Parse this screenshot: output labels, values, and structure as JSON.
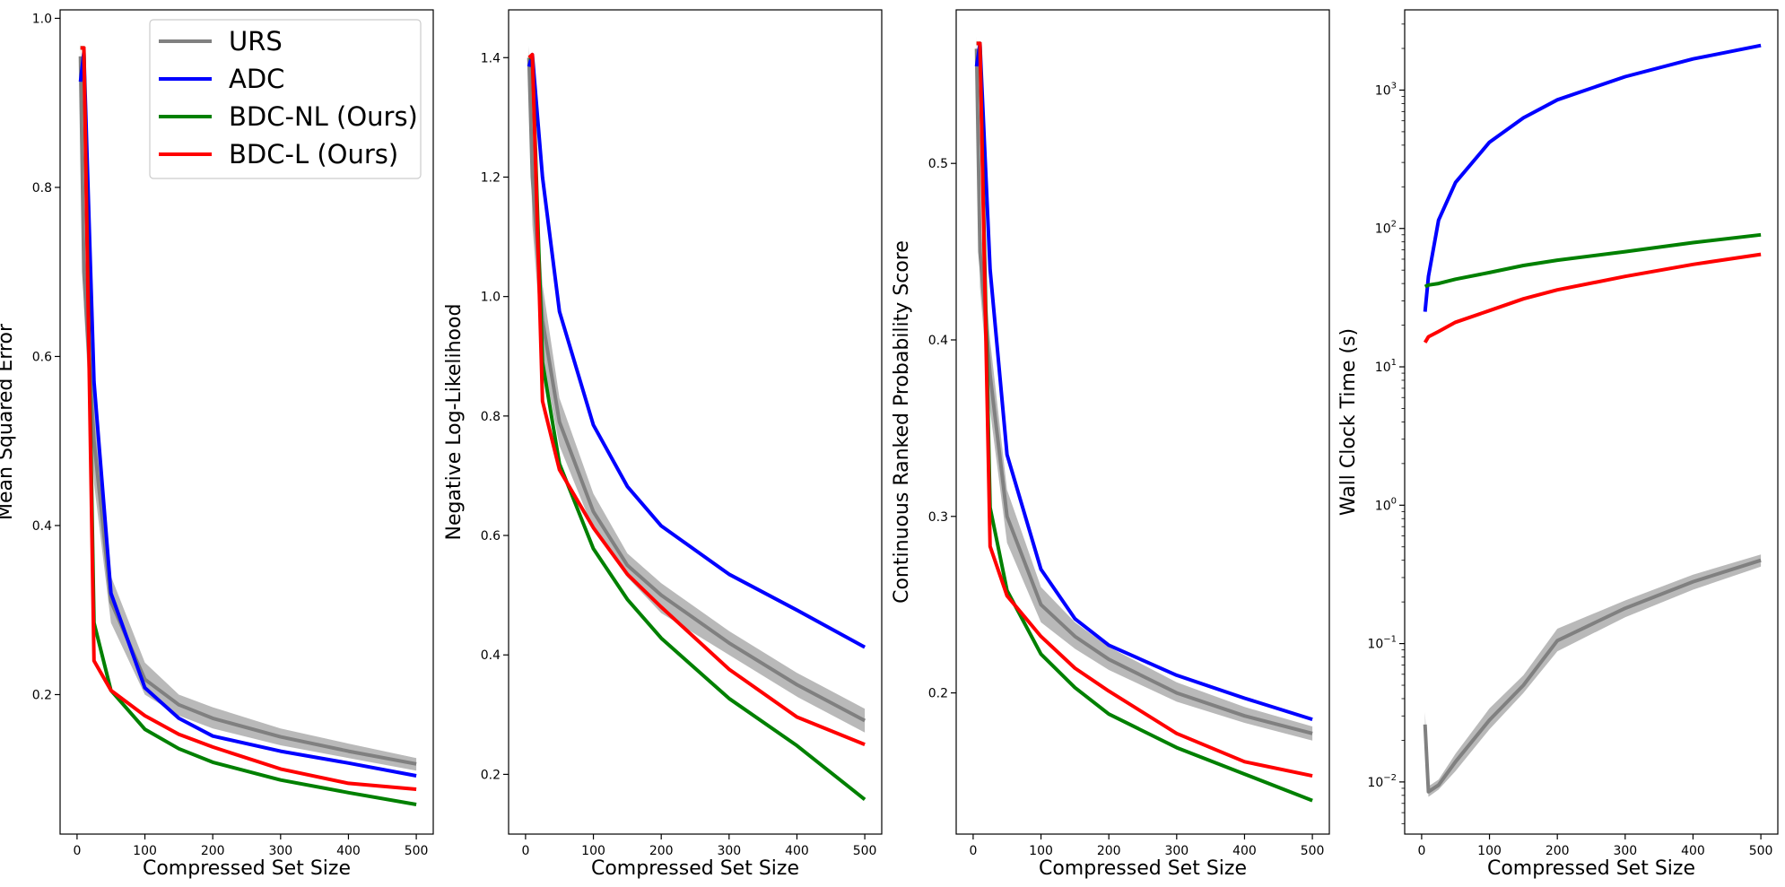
{
  "chart_data": [
    {
      "type": "line",
      "title": "",
      "xlabel": "Compressed Set Size",
      "ylabel": "Mean Squared Error",
      "xlim": [
        -25,
        525
      ],
      "ylim": [
        0.035,
        1.01
      ],
      "x_ticks": [
        0,
        100,
        200,
        300,
        400,
        500
      ],
      "y_ticks": [
        0.2,
        0.4,
        0.6,
        0.8,
        1.0
      ],
      "y_tick_labels": [
        "0.2",
        "0.4",
        "0.6",
        "0.8",
        "1.0"
      ],
      "legend": "top-right",
      "series": [
        {
          "name": "URS",
          "color": "#808080",
          "x": [
            5,
            10,
            25,
            50,
            100,
            150,
            200,
            300,
            400,
            500
          ],
          "y": [
            0.955,
            0.7,
            0.5,
            0.31,
            0.218,
            0.188,
            0.172,
            0.15,
            0.133,
            0.118
          ],
          "band_low": [
            0.93,
            0.66,
            0.45,
            0.285,
            0.2,
            0.175,
            0.16,
            0.14,
            0.125,
            0.11
          ],
          "band_high": [
            0.975,
            0.74,
            0.55,
            0.34,
            0.238,
            0.2,
            0.185,
            0.16,
            0.142,
            0.125
          ]
        },
        {
          "name": "ADC",
          "color": "#0000ff",
          "x": [
            5,
            10,
            25,
            50,
            100,
            150,
            200,
            300,
            400,
            500
          ],
          "y": [
            0.925,
            0.96,
            0.57,
            0.32,
            0.208,
            0.172,
            0.151,
            0.133,
            0.119,
            0.104
          ]
        },
        {
          "name": "BDC-NL (Ours)",
          "color": "#008000",
          "x": [
            5,
            10,
            25,
            50,
            100,
            150,
            200,
            300,
            400,
            500
          ],
          "y": [
            0.965,
            0.965,
            0.285,
            0.205,
            0.159,
            0.136,
            0.12,
            0.099,
            0.084,
            0.07
          ]
        },
        {
          "name": "BDC-L (Ours)",
          "color": "#ff0000",
          "x": [
            5,
            10,
            25,
            50,
            100,
            150,
            200,
            300,
            400,
            500
          ],
          "y": [
            0.965,
            0.965,
            0.24,
            0.205,
            0.175,
            0.153,
            0.138,
            0.112,
            0.095,
            0.088
          ]
        }
      ]
    },
    {
      "type": "line",
      "title": "",
      "xlabel": "Compressed Set Size",
      "ylabel": "Negative Log-Likelihood",
      "xlim": [
        -25,
        525
      ],
      "ylim": [
        0.1,
        1.48
      ],
      "x_ticks": [
        0,
        100,
        200,
        300,
        400,
        500
      ],
      "y_ticks": [
        0.2,
        0.4,
        0.6,
        0.8,
        1.0,
        1.2,
        1.4
      ],
      "y_tick_labels": [
        "0.2",
        "0.4",
        "0.6",
        "0.8",
        "1.0",
        "1.2",
        "1.4"
      ],
      "series": [
        {
          "name": "URS",
          "color": "#808080",
          "x": [
            5,
            10,
            25,
            50,
            100,
            150,
            200,
            300,
            400,
            500
          ],
          "y": [
            1.4,
            1.2,
            0.96,
            0.79,
            0.64,
            0.55,
            0.5,
            0.42,
            0.35,
            0.29
          ],
          "band_low": [
            1.38,
            1.12,
            0.9,
            0.75,
            0.61,
            0.53,
            0.47,
            0.4,
            0.33,
            0.27
          ],
          "band_high": [
            1.42,
            1.28,
            1.02,
            0.83,
            0.67,
            0.57,
            0.52,
            0.44,
            0.37,
            0.31
          ]
        },
        {
          "name": "ADC",
          "color": "#0000ff",
          "x": [
            5,
            10,
            25,
            50,
            100,
            150,
            200,
            300,
            400,
            500
          ],
          "y": [
            1.385,
            1.405,
            1.2,
            0.975,
            0.785,
            0.682,
            0.616,
            0.535,
            0.475,
            0.413
          ]
        },
        {
          "name": "BDC-NL (Ours)",
          "color": "#008000",
          "x": [
            5,
            10,
            25,
            50,
            100,
            150,
            200,
            300,
            400,
            500
          ],
          "y": [
            1.4,
            1.4,
            0.89,
            0.72,
            0.578,
            0.493,
            0.428,
            0.327,
            0.248,
            0.158
          ]
        },
        {
          "name": "BDC-L (Ours)",
          "color": "#ff0000",
          "x": [
            5,
            10,
            25,
            50,
            100,
            150,
            200,
            300,
            400,
            500
          ],
          "y": [
            1.4,
            1.405,
            0.825,
            0.71,
            0.613,
            0.535,
            0.48,
            0.376,
            0.296,
            0.25
          ]
        }
      ]
    },
    {
      "type": "line",
      "title": "",
      "xlabel": "Compressed Set Size",
      "ylabel": "Continuous Ranked Probability Score",
      "xlim": [
        -25,
        525
      ],
      "ylim": [
        0.12,
        0.587
      ],
      "x_ticks": [
        0,
        100,
        200,
        300,
        400,
        500
      ],
      "y_ticks": [
        0.2,
        0.3,
        0.4,
        0.5
      ],
      "y_tick_labels": [
        "0.2",
        "0.3",
        "0.4",
        "0.5"
      ],
      "series": [
        {
          "name": "URS",
          "color": "#808080",
          "x": [
            5,
            10,
            25,
            50,
            100,
            150,
            200,
            300,
            400,
            500
          ],
          "y": [
            0.565,
            0.45,
            0.38,
            0.3,
            0.25,
            0.232,
            0.219,
            0.2,
            0.187,
            0.177
          ],
          "band_low": [
            0.555,
            0.43,
            0.36,
            0.285,
            0.24,
            0.225,
            0.213,
            0.195,
            0.183,
            0.173
          ],
          "band_high": [
            0.572,
            0.47,
            0.4,
            0.315,
            0.26,
            0.24,
            0.226,
            0.206,
            0.192,
            0.181
          ]
        },
        {
          "name": "ADC",
          "color": "#0000ff",
          "x": [
            5,
            10,
            25,
            50,
            100,
            150,
            200,
            300,
            400,
            500
          ],
          "y": [
            0.555,
            0.568,
            0.44,
            0.335,
            0.27,
            0.242,
            0.227,
            0.21,
            0.197,
            0.185
          ]
        },
        {
          "name": "BDC-NL (Ours)",
          "color": "#008000",
          "x": [
            5,
            10,
            25,
            50,
            100,
            150,
            200,
            300,
            400,
            500
          ],
          "y": [
            0.568,
            0.568,
            0.305,
            0.258,
            0.222,
            0.203,
            0.188,
            0.169,
            0.154,
            0.139
          ]
        },
        {
          "name": "BDC-L (Ours)",
          "color": "#ff0000",
          "x": [
            5,
            10,
            25,
            50,
            100,
            150,
            200,
            300,
            400,
            500
          ],
          "y": [
            0.568,
            0.568,
            0.283,
            0.255,
            0.232,
            0.214,
            0.201,
            0.177,
            0.161,
            0.153
          ]
        }
      ]
    },
    {
      "type": "line",
      "title": "",
      "xlabel": "Compressed Set Size",
      "ylabel": "Wall Clock Time (s)",
      "xlim": [
        -25,
        525
      ],
      "yscale": "log",
      "ylim": [
        0.0042,
        3800
      ],
      "x_ticks": [
        0,
        100,
        200,
        300,
        400,
        500
      ],
      "y_ticks": [
        0.01,
        0.1,
        1,
        10,
        100,
        1000
      ],
      "y_tick_labels": [
        [
          "10",
          "−2"
        ],
        [
          "10",
          "−1"
        ],
        [
          "10",
          "0"
        ],
        [
          "10",
          "1"
        ],
        [
          "10",
          "2"
        ],
        [
          "10",
          "3"
        ]
      ],
      "series": [
        {
          "name": "URS",
          "color": "#808080",
          "x": [
            5,
            10,
            25,
            50,
            100,
            150,
            200,
            300,
            400,
            500
          ],
          "y": [
            0.026,
            0.0085,
            0.0095,
            0.014,
            0.028,
            0.05,
            0.105,
            0.18,
            0.28,
            0.4
          ],
          "band_low": [
            0.022,
            0.0078,
            0.0088,
            0.012,
            0.024,
            0.044,
            0.088,
            0.155,
            0.245,
            0.36
          ],
          "band_high": [
            0.032,
            0.0093,
            0.0104,
            0.016,
            0.034,
            0.059,
            0.128,
            0.205,
            0.315,
            0.44
          ]
        },
        {
          "name": "ADC",
          "color": "#0000ff",
          "x": [
            5,
            10,
            25,
            50,
            100,
            150,
            200,
            300,
            400,
            500
          ],
          "y": [
            25,
            45,
            115,
            215,
            420,
            630,
            850,
            1250,
            1680,
            2100
          ]
        },
        {
          "name": "BDC-NL (Ours)",
          "color": "#008000",
          "x": [
            5,
            10,
            25,
            50,
            100,
            150,
            200,
            300,
            400,
            500
          ],
          "y": [
            38,
            39,
            40,
            43,
            48,
            54,
            59,
            68,
            79,
            90
          ]
        },
        {
          "name": "BDC-L (Ours)",
          "color": "#ff0000",
          "x": [
            5,
            10,
            25,
            50,
            100,
            150,
            200,
            300,
            400,
            500
          ],
          "y": [
            15,
            16.5,
            18,
            21,
            25.5,
            31,
            36,
            45,
            55,
            65
          ]
        }
      ]
    }
  ]
}
